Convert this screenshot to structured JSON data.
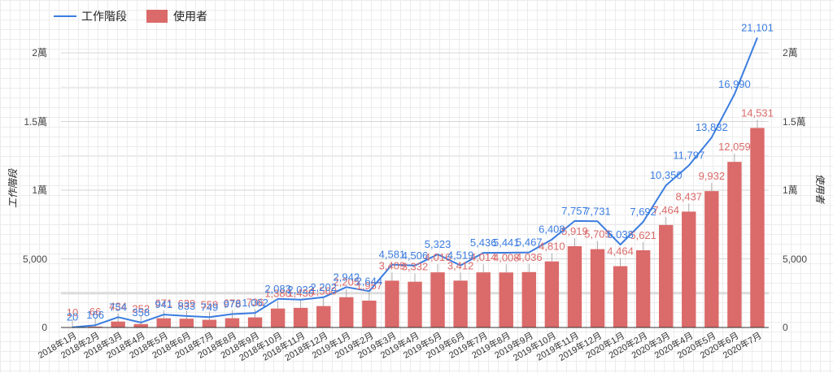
{
  "chart_data": {
    "type": "bar",
    "title": "",
    "xlabel": "",
    "ylabel": "工作階段",
    "ylabel_right": "使用者",
    "ylim": [
      0,
      20000
    ],
    "legend_position": "top-left",
    "grid": true,
    "y_tick_labels": [
      "0",
      "5,000",
      "1萬",
      "1.5萬",
      "2萬"
    ],
    "categories": [
      "2018年1月",
      "2018年2月",
      "2018年3月",
      "2018年4月",
      "2018年5月",
      "2018年6月",
      "2018年7月",
      "2018年8月",
      "2018年9月",
      "2018年10月",
      "2018年11月",
      "2018年12月",
      "2019年1月",
      "2019年2月",
      "2019年3月",
      "2019年4月",
      "2019年5月",
      "2019年6月",
      "2019年7月",
      "2019年8月",
      "2019年9月",
      "2019年10月",
      "2019年11月",
      "2019年12月",
      "2020年1月",
      "2020年2月",
      "2020年3月",
      "2020年4月",
      "2020年5月",
      "2020年6月",
      "2020年7月"
    ],
    "series": [
      {
        "name": "工作階段",
        "kind": "line",
        "color": "#3b7de0",
        "values": [
          20,
          166,
          754,
          358,
          941,
          833,
          749,
          978,
          1062,
          2083,
          2022,
          2202,
          2942,
          2644,
          4581,
          4506,
          5323,
          4519,
          5436,
          5441,
          5467,
          6408,
          7757,
          7731,
          6038,
          7692,
          10350,
          11797,
          13832,
          16990,
          21101
        ],
        "labels": [
          "20",
          "166",
          "754",
          "358",
          "941",
          "833",
          "749",
          "978",
          "1,062",
          "2,083",
          "2,022",
          "2,202",
          "2,942",
          "2,644",
          "4,581",
          "4,506",
          "5,323",
          "4,519",
          "5,436",
          "5,441",
          "5,467",
          "6,408",
          "7,757",
          "7,731",
          "6,038",
          "7,692",
          "10,350",
          "11,797",
          "13,832",
          "16,990",
          "21,101"
        ]
      },
      {
        "name": "使用者",
        "kind": "bar",
        "color": "#db6a6a",
        "values": [
          10,
          66,
          434,
          252,
          671,
          639,
          559,
          676,
          736,
          1380,
          1430,
          1560,
          2205,
          1957,
          3409,
          3332,
          4016,
          3412,
          4014,
          4008,
          4036,
          4810,
          5919,
          5705,
          4464,
          5621,
          7464,
          8437,
          9932,
          12059,
          14531
        ],
        "labels": [
          "10",
          "66",
          "434",
          "252",
          "671",
          "639",
          "559",
          "676",
          "736",
          "1,380",
          "1,430",
          "1,560",
          "2,205",
          "1,957",
          "3,409",
          "3,332",
          "4,016",
          "3,412",
          "4,014",
          "4,008",
          "4,036",
          "4,810",
          "5,919",
          "5,705",
          "4,464",
          "5,621",
          "7,464",
          "8,437",
          "9,932",
          "12,059",
          "14,531"
        ]
      }
    ]
  },
  "legend": {
    "line_label": "工作階段",
    "bar_label": "使用者"
  }
}
